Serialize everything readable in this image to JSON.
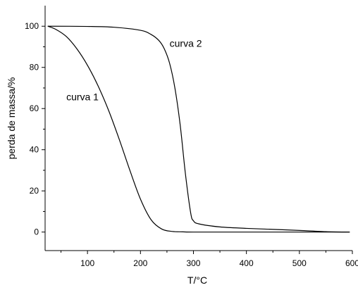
{
  "chart_data": {
    "type": "line",
    "title": "",
    "xlabel": "T/°C",
    "ylabel": "perda de massa/%",
    "xlim": [
      20,
      600
    ],
    "ylim": [
      -9,
      110
    ],
    "xticks": [
      100,
      200,
      300,
      400,
      500,
      600
    ],
    "yticks": [
      0,
      20,
      40,
      60,
      80,
      100
    ],
    "grid": false,
    "legend": "none",
    "line_color": "#000000",
    "series": [
      {
        "x": [
          25,
          40,
          60,
          80,
          100,
          120,
          140,
          160,
          180,
          200,
          220,
          240,
          260,
          280,
          300,
          400,
          500,
          595
        ],
        "y": [
          100,
          98.5,
          95,
          89,
          81,
          71,
          59,
          45,
          30,
          16,
          6,
          1.5,
          0.3,
          0.1,
          0,
          0,
          0,
          0
        ]
      },
      {
        "x": [
          25,
          100,
          150,
          200,
          220,
          235,
          245,
          255,
          265,
          275,
          285,
          295,
          300,
          310,
          350,
          400,
          450,
          500,
          550,
          595
        ],
        "y": [
          100,
          99.9,
          99.5,
          98,
          96,
          93,
          89,
          82,
          70,
          52,
          28,
          9,
          5.5,
          4,
          2.5,
          1.8,
          1.3,
          0.8,
          0.2,
          0
        ]
      }
    ],
    "annotations": [
      {
        "text": "curva 1",
        "x": 60,
        "y": 64
      },
      {
        "text": "curva 2",
        "x": 255,
        "y": 90
      }
    ]
  }
}
